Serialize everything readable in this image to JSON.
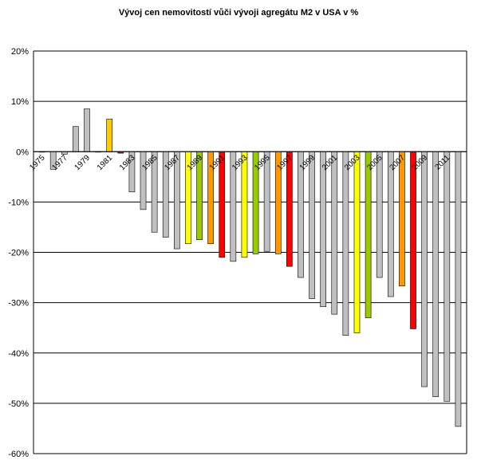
{
  "chart_data": {
    "type": "bar",
    "title": "Vývoj cen nemovitostí vůči vývoji agregátu M2 v USA v %",
    "xlabel": "",
    "ylabel": "",
    "ylim": [
      -60,
      20
    ],
    "yticks": [
      20,
      10,
      0,
      -10,
      -20,
      -30,
      -40,
      -50,
      -60
    ],
    "ytick_labels": [
      "20%",
      "10%",
      "0%",
      "-10%",
      "-20%",
      "-30%",
      "-40%",
      "-50%",
      "-60%"
    ],
    "grid": "horizontal",
    "categories": [
      "1975",
      "1976",
      "1977",
      "1978",
      "1979",
      "1980",
      "1981",
      "1982",
      "1983",
      "1984",
      "1985",
      "1986",
      "1987",
      "1988",
      "1989",
      "1990",
      "1991",
      "1992",
      "1993",
      "1994",
      "1995",
      "1996",
      "1997",
      "1998",
      "1999",
      "2000",
      "2001",
      "2002",
      "2003",
      "2004",
      "2005",
      "2006",
      "2007",
      "2008",
      "2009",
      "2010",
      "2011",
      "2012"
    ],
    "xtick_labels": [
      "1975",
      "",
      "1977",
      "",
      "1979",
      "",
      "1981",
      "",
      "1983",
      "",
      "1985",
      "",
      "1987",
      "",
      "1989",
      "",
      "1991",
      "",
      "1993",
      "",
      "1995",
      "",
      "1997",
      "",
      "1999",
      "",
      "2001",
      "",
      "2003",
      "",
      "2005",
      "",
      "2007",
      "",
      "2009",
      "",
      "2011",
      ""
    ],
    "values": [
      0,
      -3.5,
      -0.5,
      5,
      8.5,
      0,
      6.5,
      -0.3,
      -8,
      -11.5,
      -16,
      -17,
      -19.3,
      -18.3,
      -17.5,
      -18.3,
      -21,
      -21.8,
      -21,
      -20.3,
      -19.8,
      -20.3,
      -22.8,
      -25,
      -29.2,
      -30.8,
      -32.3,
      -36.5,
      -36,
      -33,
      -25,
      -28.8,
      -26.7,
      -35.2,
      -46.7,
      -48.7,
      -49.6,
      -54.6
    ],
    "colors": [
      "#c0c0c0",
      "#c0c0c0",
      "#c0c0c0",
      "#c0c0c0",
      "#c0c0c0",
      "#c0c0c0",
      "#ffcc00",
      "#ff0000",
      "#c0c0c0",
      "#c0c0c0",
      "#c0c0c0",
      "#c0c0c0",
      "#c0c0c0",
      "#ffff00",
      "#99cc00",
      "#ff9900",
      "#ff0000",
      "#c0c0c0",
      "#ffff00",
      "#99cc00",
      "#c0c0c0",
      "#ff9900",
      "#ff0000",
      "#c0c0c0",
      "#c0c0c0",
      "#c0c0c0",
      "#c0c0c0",
      "#c0c0c0",
      "#ffff00",
      "#99cc00",
      "#c0c0c0",
      "#c0c0c0",
      "#ff9900",
      "#ff0000",
      "#c0c0c0",
      "#c0c0c0",
      "#c0c0c0",
      "#c0c0c0"
    ],
    "bar_stroke": "#000000",
    "gridline_color": "#000000",
    "background": "#ffffff"
  }
}
